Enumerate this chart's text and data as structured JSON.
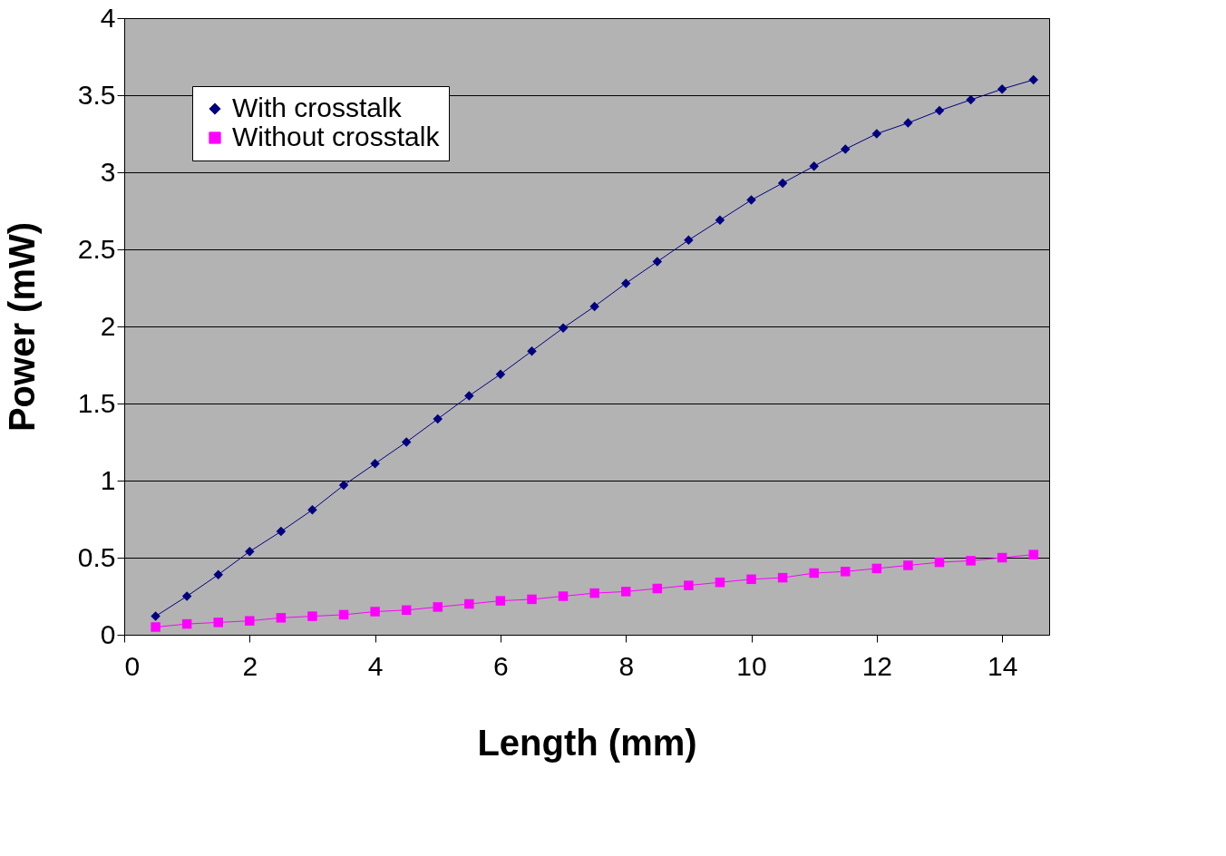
{
  "chart_data": {
    "type": "line",
    "xlabel": "Length (mm)",
    "ylabel": "Power (mW)",
    "xlim": [
      0,
      14.75
    ],
    "xticks": [
      0,
      2,
      4,
      6,
      8,
      10,
      12,
      14
    ],
    "ylim": [
      0,
      4
    ],
    "yticks": [
      0,
      0.5,
      1,
      1.5,
      2,
      2.5,
      3,
      3.5,
      4
    ],
    "grid": "y",
    "legend": "top left",
    "line_style": "solid",
    "x": [
      0.5,
      1,
      1.5,
      2,
      2.5,
      3,
      3.5,
      4,
      4.5,
      5,
      5.5,
      6,
      6.5,
      7,
      7.5,
      8,
      8.5,
      9,
      9.5,
      10,
      10.5,
      11,
      11.5,
      12,
      12.5,
      13,
      13.5,
      14,
      14.5
    ],
    "series": [
      {
        "name": "With crosstalk",
        "color": "#000080",
        "marker": "diamond",
        "values": [
          0.12,
          0.25,
          0.39,
          0.54,
          0.67,
          0.81,
          0.97,
          1.11,
          1.25,
          1.4,
          1.55,
          1.69,
          1.84,
          1.99,
          2.13,
          2.28,
          2.42,
          2.56,
          2.69,
          2.82,
          2.93,
          3.04,
          3.15,
          3.25,
          3.32,
          3.4,
          3.47,
          3.54,
          3.6
        ]
      },
      {
        "name": "Without crosstalk",
        "color": "#ff00ff",
        "marker": "square",
        "values": [
          0.05,
          0.07,
          0.08,
          0.09,
          0.11,
          0.12,
          0.13,
          0.15,
          0.16,
          0.18,
          0.2,
          0.22,
          0.23,
          0.25,
          0.27,
          0.28,
          0.3,
          0.32,
          0.34,
          0.36,
          0.37,
          0.4,
          0.41,
          0.43,
          0.45,
          0.47,
          0.48,
          0.5,
          0.52
        ]
      }
    ]
  }
}
